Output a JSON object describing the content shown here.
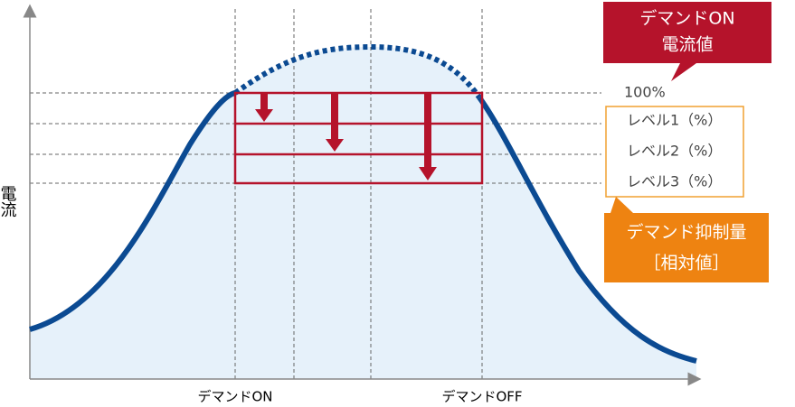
{
  "axes": {
    "y_label": "電流",
    "x_labels": [
      "デマンドON",
      "デマンドOFF"
    ]
  },
  "on_callout": {
    "lines": [
      "デマンドON",
      "電流値"
    ]
  },
  "levels": [
    "100%",
    "レベル1（%）",
    "レベル2（%）",
    "レベル3（%）"
  ],
  "suppression_callout": {
    "lines": [
      "デマンド抑制量",
      "［相対値］"
    ]
  }
}
